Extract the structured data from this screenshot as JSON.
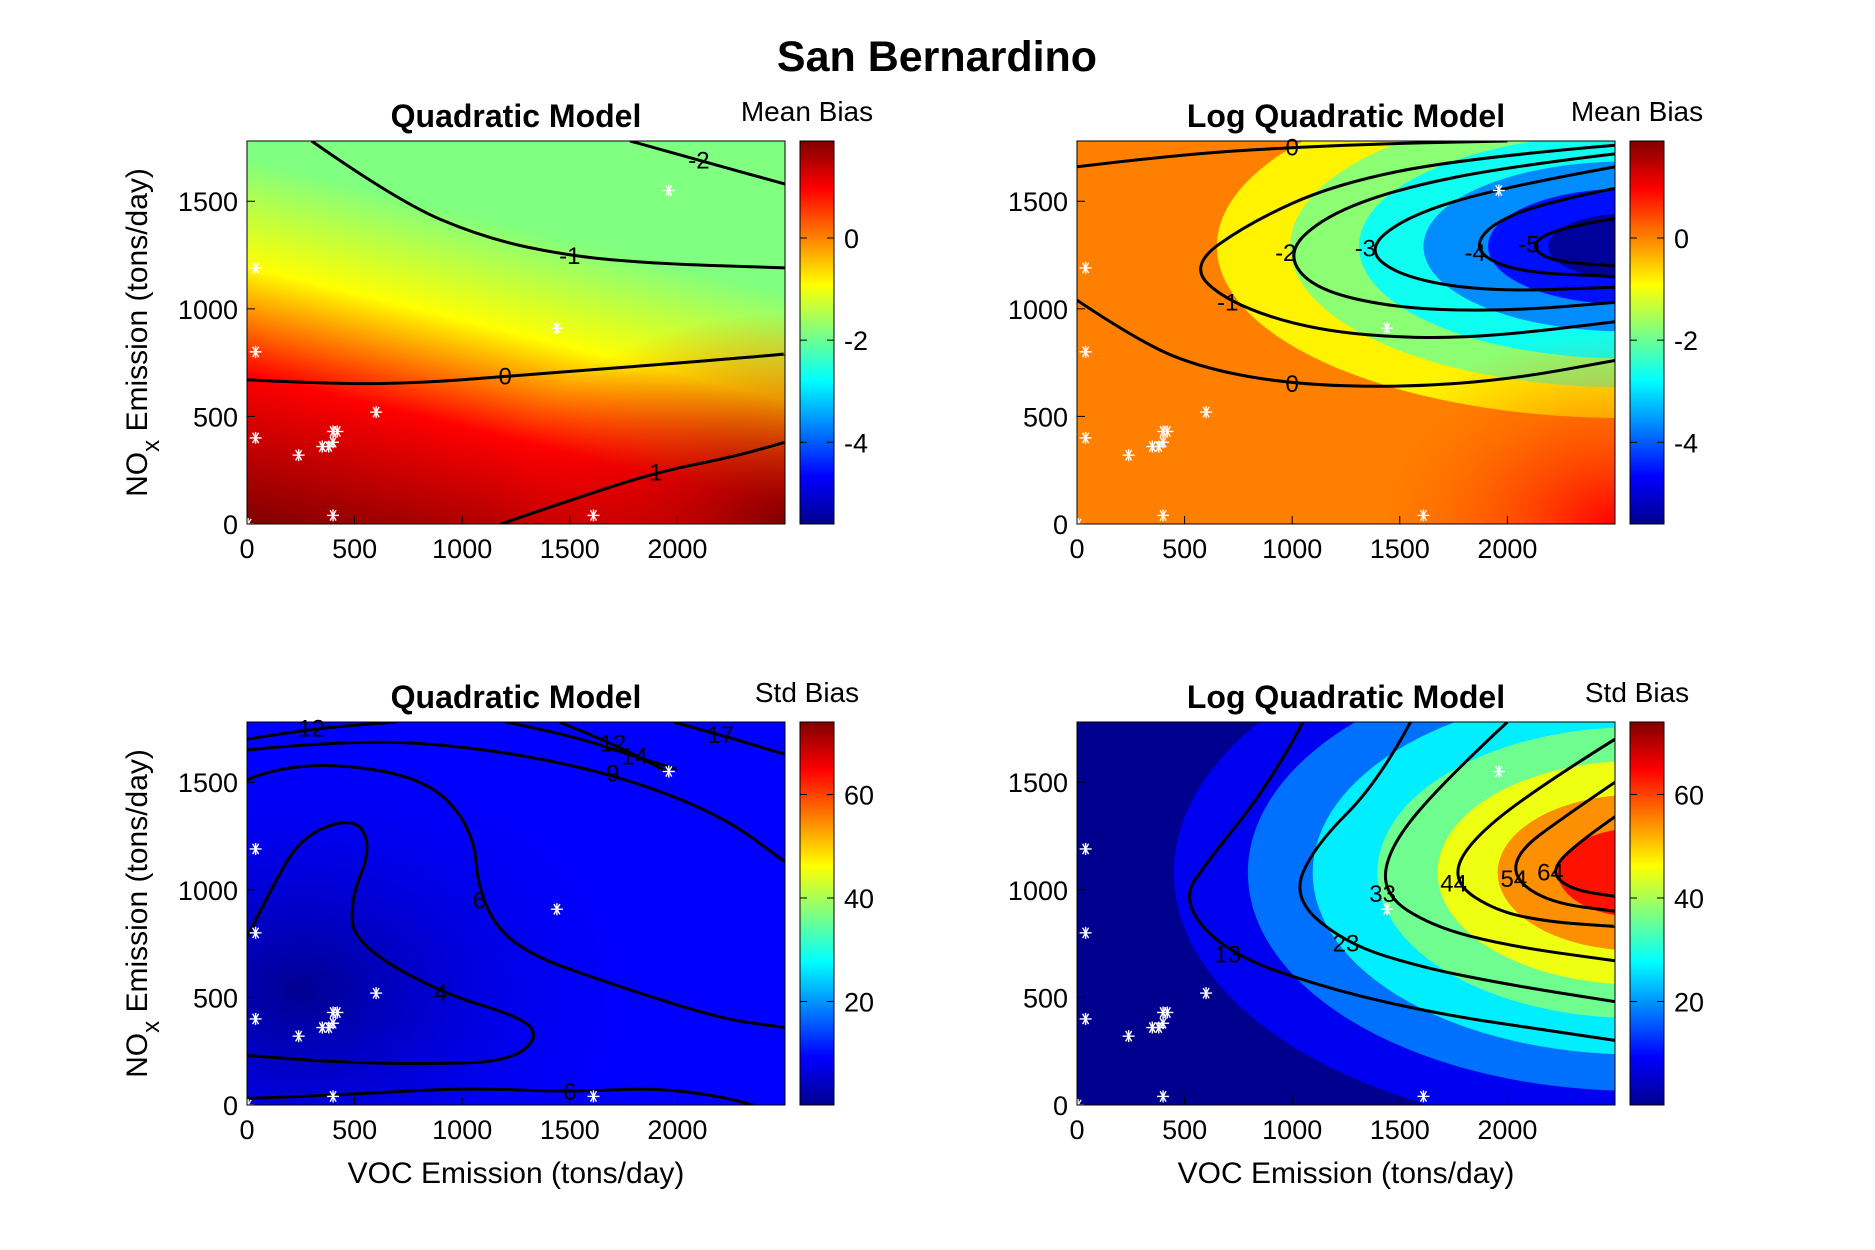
{
  "figure": {
    "title": "San Bernardino",
    "colormap": [
      "#00008f",
      "#0000ff",
      "#0080ff",
      "#00ffff",
      "#80ff80",
      "#ffff00",
      "#ff8000",
      "#ff0000",
      "#800000"
    ],
    "marker_color": "#ffffff",
    "contour_color": "#000000"
  },
  "chart_data": [
    {
      "type": "heatmap",
      "title": "Quadratic Model",
      "colorbar_title": "Mean Bias",
      "xlabel": "",
      "ylabel": "NOx Emission (tons/day)",
      "xlim": [
        0,
        2500
      ],
      "ylim": [
        0,
        1780
      ],
      "xticks": [
        0,
        500,
        1000,
        1500,
        2000
      ],
      "yticks": [
        0,
        500,
        1000,
        1500
      ],
      "clim": [
        -5.6,
        1.9
      ],
      "cticks": [
        -4,
        -2,
        0
      ],
      "contour_levels": [
        {
          "label": "-2",
          "points": [
            [
              1780,
              1780
            ],
            [
              2100,
              1690
            ],
            [
              2500,
              1580
            ]
          ]
        },
        {
          "label": "-1",
          "points": [
            [
              300,
              1780
            ],
            [
              700,
              1500
            ],
            [
              1100,
              1330
            ],
            [
              1500,
              1245
            ],
            [
              1900,
              1210
            ],
            [
              2500,
              1190
            ]
          ]
        },
        {
          "label": "0",
          "points": [
            [
              0,
              670
            ],
            [
              400,
              650
            ],
            [
              800,
              655
            ],
            [
              1200,
              685
            ],
            [
              1700,
              725
            ],
            [
              2100,
              755
            ],
            [
              2500,
              790
            ]
          ]
        },
        {
          "label": "1",
          "points": [
            [
              1180,
              0
            ],
            [
              1500,
              110
            ],
            [
              1900,
              240
            ],
            [
              2250,
              310
            ],
            [
              2500,
              380
            ]
          ]
        }
      ],
      "samples": [
        [
          5,
          0
        ],
        [
          40,
          1190
        ],
        [
          40,
          800
        ],
        [
          40,
          400
        ],
        [
          240,
          320
        ],
        [
          350,
          360
        ],
        [
          380,
          360
        ],
        [
          400,
          430
        ],
        [
          400,
          380
        ],
        [
          420,
          430
        ],
        [
          400,
          40
        ],
        [
          600,
          520
        ],
        [
          1440,
          910
        ],
        [
          1610,
          40
        ],
        [
          1960,
          1550
        ]
      ]
    },
    {
      "type": "heatmap",
      "title": "Log Quadratic Model",
      "colorbar_title": "Mean Bias",
      "xlabel": "",
      "ylabel": "",
      "xlim": [
        0,
        2500
      ],
      "ylim": [
        0,
        1780
      ],
      "xticks": [
        0,
        500,
        1000,
        1500,
        2000
      ],
      "yticks": [
        0,
        500,
        1000,
        1500
      ],
      "clim": [
        -5.6,
        1.9
      ],
      "cticks": [
        -4,
        -2,
        0
      ],
      "contour_levels": [
        {
          "label": "0",
          "points": [
            [
              0,
              1660
            ],
            [
              500,
              1720
            ],
            [
              1000,
              1750
            ],
            [
              1500,
              1770
            ],
            [
              2000,
              1780
            ]
          ]
        },
        {
          "label": "0",
          "points": [
            [
              0,
              1040
            ],
            [
              300,
              840
            ],
            [
              600,
              720
            ],
            [
              1000,
              650
            ],
            [
              1500,
              635
            ],
            [
              2000,
              670
            ],
            [
              2500,
              760
            ]
          ]
        },
        {
          "label": "-1",
          "points": [
            [
              2500,
              1760
            ],
            [
              1800,
              1700
            ],
            [
              1200,
              1580
            ],
            [
              800,
              1400
            ],
            [
              520,
              1200
            ],
            [
              700,
              1030
            ],
            [
              1100,
              900
            ],
            [
              1600,
              860
            ],
            [
              2000,
              880
            ],
            [
              2500,
              940
            ]
          ]
        },
        {
          "label": "-2",
          "points": [
            [
              2500,
              1720
            ],
            [
              2000,
              1660
            ],
            [
              1500,
              1560
            ],
            [
              1150,
              1430
            ],
            [
              970,
              1260
            ],
            [
              1100,
              1090
            ],
            [
              1500,
              1000
            ],
            [
              2000,
              990
            ],
            [
              2500,
              1030
            ]
          ]
        },
        {
          "label": "-3",
          "points": [
            [
              2500,
              1660
            ],
            [
              2000,
              1570
            ],
            [
              1550,
              1440
            ],
            [
              1340,
              1280
            ],
            [
              1500,
              1150
            ],
            [
              1900,
              1080
            ],
            [
              2500,
              1100
            ]
          ]
        },
        {
          "label": "-4",
          "points": [
            [
              2500,
              1560
            ],
            [
              2150,
              1490
            ],
            [
              1900,
              1380
            ],
            [
              1850,
              1260
            ],
            [
              2050,
              1170
            ],
            [
              2500,
              1150
            ]
          ]
        },
        {
          "label": "-5",
          "points": [
            [
              2500,
              1420
            ],
            [
              2250,
              1380
            ],
            [
              2100,
              1300
            ],
            [
              2200,
              1220
            ],
            [
              2500,
              1200
            ]
          ]
        }
      ],
      "samples": [
        [
          5,
          0
        ],
        [
          40,
          1190
        ],
        [
          40,
          800
        ],
        [
          40,
          400
        ],
        [
          240,
          320
        ],
        [
          350,
          360
        ],
        [
          380,
          360
        ],
        [
          400,
          430
        ],
        [
          400,
          380
        ],
        [
          420,
          430
        ],
        [
          400,
          40
        ],
        [
          600,
          520
        ],
        [
          1440,
          910
        ],
        [
          1610,
          40
        ],
        [
          1960,
          1550
        ]
      ]
    },
    {
      "type": "heatmap",
      "title": "Quadratic Model",
      "colorbar_title": "Std Bias",
      "xlabel": "VOC Emission (tons/day)",
      "ylabel": "NOx Emission (tons/day)",
      "xlim": [
        0,
        2500
      ],
      "ylim": [
        0,
        1780
      ],
      "xticks": [
        0,
        500,
        1000,
        1500,
        2000
      ],
      "yticks": [
        0,
        500,
        1000,
        1500
      ],
      "clim": [
        0,
        74
      ],
      "cticks": [
        20,
        40,
        60
      ],
      "contour_levels": [
        {
          "label": "17",
          "points": [
            [
              1980,
              1780
            ],
            [
              2200,
              1720
            ],
            [
              2500,
              1630
            ]
          ]
        },
        {
          "label": "14",
          "points": [
            [
              1200,
              1780
            ],
            [
              1500,
              1720
            ],
            [
              1800,
              1620
            ],
            [
              2000,
              1560
            ]
          ]
        },
        {
          "label": "12",
          "points": [
            [
              0,
              1700
            ],
            [
              300,
              1750
            ],
            [
              700,
              1780
            ]
          ]
        },
        {
          "label": "12",
          "points": [
            [
              1450,
              1780
            ],
            [
              1700,
              1680
            ],
            [
              1950,
              1550
            ]
          ]
        },
        {
          "label": "9",
          "points": [
            [
              0,
              1650
            ],
            [
              500,
              1700
            ],
            [
              1100,
              1660
            ],
            [
              1700,
              1540
            ],
            [
              2200,
              1350
            ],
            [
              2500,
              1130
            ]
          ]
        },
        {
          "label": "6",
          "points": [
            [
              0,
              1510
            ],
            [
              200,
              1600
            ],
            [
              800,
              1540
            ],
            [
              1050,
              1300
            ],
            [
              1080,
              950
            ],
            [
              1250,
              720
            ],
            [
              1700,
              560
            ],
            [
              2200,
              400
            ],
            [
              2500,
              360
            ]
          ]
        },
        {
          "label": "4",
          "points": [
            [
              0,
              780
            ],
            [
              100,
              980
            ],
            [
              250,
              1250
            ],
            [
              500,
              1340
            ],
            [
              580,
              1200
            ],
            [
              480,
              950
            ],
            [
              500,
              750
            ],
            [
              900,
              520
            ],
            [
              1300,
              400
            ],
            [
              1350,
              300
            ],
            [
              1200,
              200
            ],
            [
              800,
              190
            ],
            [
              400,
              200
            ],
            [
              0,
              230
            ]
          ]
        },
        {
          "label": "6",
          "points": [
            [
              0,
              30
            ],
            [
              500,
              50
            ],
            [
              1000,
              80
            ],
            [
              1500,
              60
            ],
            [
              1900,
              80
            ],
            [
              2200,
              40
            ],
            [
              2350,
              0
            ]
          ]
        }
      ],
      "samples": [
        [
          5,
          0
        ],
        [
          40,
          1190
        ],
        [
          40,
          800
        ],
        [
          40,
          400
        ],
        [
          240,
          320
        ],
        [
          350,
          360
        ],
        [
          380,
          360
        ],
        [
          400,
          430
        ],
        [
          400,
          380
        ],
        [
          420,
          430
        ],
        [
          400,
          40
        ],
        [
          600,
          520
        ],
        [
          1440,
          910
        ],
        [
          1610,
          40
        ],
        [
          1960,
          1550
        ]
      ]
    },
    {
      "type": "heatmap",
      "title": "Log Quadratic Model",
      "colorbar_title": "Std Bias",
      "xlabel": "VOC Emission (tons/day)",
      "ylabel": "",
      "xlim": [
        0,
        2500
      ],
      "ylim": [
        0,
        1780
      ],
      "xticks": [
        0,
        500,
        1000,
        1500,
        2000
      ],
      "yticks": [
        0,
        500,
        1000,
        1500
      ],
      "clim": [
        0,
        74
      ],
      "cticks": [
        20,
        40,
        60
      ],
      "contour_levels": [
        {
          "label": "13",
          "points": [
            [
              1050,
              1780
            ],
            [
              900,
              1500
            ],
            [
              620,
              1150
            ],
            [
              480,
              950
            ],
            [
              700,
              700
            ],
            [
              1200,
              530
            ],
            [
              1700,
              420
            ],
            [
              2100,
              360
            ],
            [
              2500,
              300
            ]
          ]
        },
        {
          "label": "23",
          "points": [
            [
              1550,
              1780
            ],
            [
              1400,
              1500
            ],
            [
              1100,
              1200
            ],
            [
              1000,
              960
            ],
            [
              1250,
              750
            ],
            [
              1600,
              640
            ],
            [
              2000,
              560
            ],
            [
              2500,
              480
            ]
          ]
        },
        {
          "label": "33",
          "points": [
            [
              2000,
              1780
            ],
            [
              1700,
              1500
            ],
            [
              1450,
              1200
            ],
            [
              1420,
              980
            ],
            [
              1650,
              830
            ],
            [
              2000,
              740
            ],
            [
              2500,
              670
            ]
          ]
        },
        {
          "label": "44",
          "points": [
            [
              2500,
              1700
            ],
            [
              2100,
              1450
            ],
            [
              1800,
              1200
            ],
            [
              1750,
              1030
            ],
            [
              1950,
              900
            ],
            [
              2200,
              850
            ],
            [
              2500,
              830
            ]
          ]
        },
        {
          "label": "54",
          "points": [
            [
              2500,
              1500
            ],
            [
              2250,
              1330
            ],
            [
              2050,
              1180
            ],
            [
              2030,
              1050
            ],
            [
              2200,
              940
            ],
            [
              2500,
              900
            ]
          ]
        },
        {
          "label": "64",
          "points": [
            [
              2500,
              1340
            ],
            [
              2300,
              1200
            ],
            [
              2200,
              1080
            ],
            [
              2300,
              1000
            ],
            [
              2500,
              970
            ]
          ]
        }
      ],
      "samples": [
        [
          5,
          0
        ],
        [
          40,
          1190
        ],
        [
          40,
          800
        ],
        [
          40,
          400
        ],
        [
          240,
          320
        ],
        [
          350,
          360
        ],
        [
          380,
          360
        ],
        [
          400,
          430
        ],
        [
          400,
          380
        ],
        [
          420,
          430
        ],
        [
          400,
          40
        ],
        [
          600,
          520
        ],
        [
          1440,
          910
        ],
        [
          1610,
          40
        ],
        [
          1960,
          1550
        ]
      ]
    }
  ]
}
